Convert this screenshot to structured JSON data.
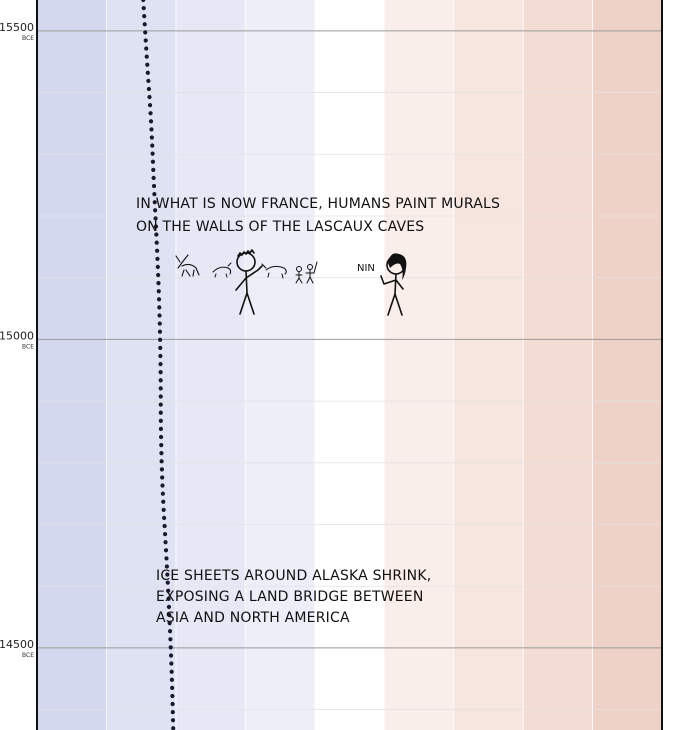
{
  "chart_data": {
    "type": "line",
    "x_axis": {
      "label": "",
      "bands": [
        {
          "color": "#d4d8ee"
        },
        {
          "color": "#dfe2f3"
        },
        {
          "color": "#e6e8f5"
        },
        {
          "color": "#eceef8"
        },
        {
          "color": "#ffffff"
        },
        {
          "color": "#faeeea"
        },
        {
          "color": "#f7e6e0"
        },
        {
          "color": "#f3dcd3"
        },
        {
          "color": "#eed2c7"
        }
      ]
    },
    "y_axis": {
      "range": [
        15550,
        14367
      ],
      "ticks": [
        {
          "value": 15500,
          "label": "15500",
          "era": "BCE"
        },
        {
          "value": 15000,
          "label": "15000",
          "era": "BCE"
        },
        {
          "value": 14500,
          "label": "14500",
          "era": "BCE"
        }
      ]
    },
    "series": [
      {
        "style": "dotted",
        "points": [
          {
            "year": 15550,
            "t": 0.17
          },
          {
            "year": 15450,
            "t": 0.176
          },
          {
            "year": 15350,
            "t": 0.183
          },
          {
            "year": 15250,
            "t": 0.187
          },
          {
            "year": 15150,
            "t": 0.192
          },
          {
            "year": 15050,
            "t": 0.196
          },
          {
            "year": 14950,
            "t": 0.198
          },
          {
            "year": 14850,
            "t": 0.198
          },
          {
            "year": 14750,
            "t": 0.201
          },
          {
            "year": 14650,
            "t": 0.207
          },
          {
            "year": 14550,
            "t": 0.212
          },
          {
            "year": 14450,
            "t": 0.216
          },
          {
            "year": 14367,
            "t": 0.218
          }
        ]
      }
    ],
    "annotations": [
      {
        "lines": [
          "IN WHAT IS NOW FRANCE, HUMANS PAINT MURALS",
          "ON THE WALLS OF THE LASCAUX CAVES"
        ]
      },
      {
        "lines": [
          "ICE SHEETS AROUND ALASKA SHRINK,",
          "EXPOSING A LAND BRIDGE BETWEEN",
          "ASIA AND NORTH AMERICA"
        ]
      }
    ],
    "speech": "NIN",
    "colors": {
      "line": "#1a1a2e",
      "grid": "#bdbdbd",
      "axis": "#111111"
    }
  }
}
